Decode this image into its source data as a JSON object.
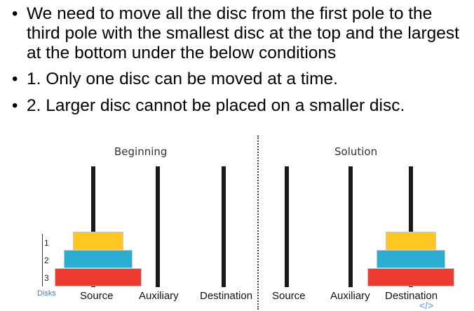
{
  "bullets": [
    "We need to move all the disc from the first pole to the third pole with the smallest disc at the top and the largest at the bottom under the below conditions",
    "1. Only one disc can be moved at a time.",
    "2. Larger disc cannot be placed on a smaller disc."
  ],
  "diagram": {
    "beginning_title": "Beginning",
    "solution_title": "Solution",
    "disc_numbers": [
      "1",
      "2",
      "3"
    ],
    "disks_label": "Disks",
    "pole_labels_left": [
      "Source",
      "Auxiliary",
      "Destination"
    ],
    "pole_labels_right": [
      "Source",
      "Auxiliary",
      "Destination"
    ],
    "logo_text": "</>",
    "colors": {
      "small_disc": "#ffc820",
      "medium_disc": "#2aaed0",
      "large_disc": "#ee3a30",
      "pole": "#1a1a1a"
    }
  }
}
